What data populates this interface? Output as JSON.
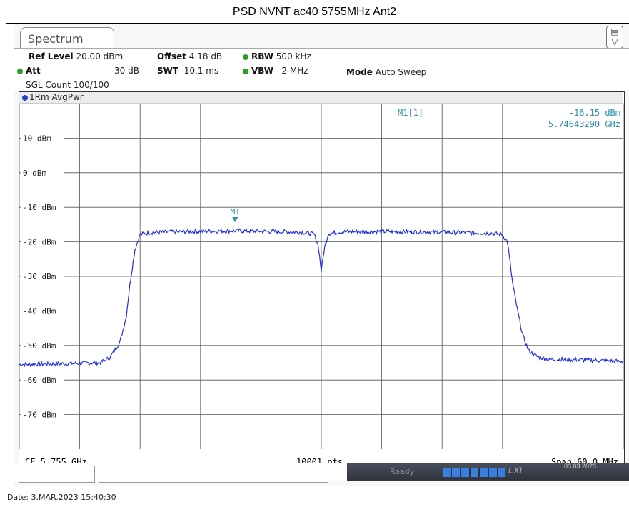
{
  "window": {
    "title": "PSD NVNT ac40 5755MHz Ant2"
  },
  "tab": {
    "label": "Spectrum",
    "icon": "display-settings-icon"
  },
  "settings": {
    "ref_level_label": "Ref Level",
    "ref_level_value": "20.00 dBm",
    "offset_label": "Offset",
    "offset_value": "4.18 dB",
    "rbw_label": "RBW",
    "rbw_value": "500 kHz",
    "att_label": "Att",
    "att_value": "30 dB",
    "swt_label": "SWT",
    "swt_value": "10.1 ms",
    "vbw_label": "VBW",
    "vbw_value": "2 MHz",
    "mode_label": "Mode",
    "mode_value": "Auto Sweep",
    "sgl_count": "SGL Count 100/100",
    "indicator_color": "#28a028"
  },
  "trace": {
    "label": "1Rm AvgPwr",
    "color": "#1f2fe0",
    "dot_color": "#2342c8"
  },
  "marker": {
    "name": "M1",
    "readout_label": "M1[1]",
    "level": "-16.15 dBm",
    "frequency": "5.74643290 GHz",
    "color": "#2a8fb0"
  },
  "footer": {
    "center_freq": "CF 5.755 GHz",
    "points": "10001 pts",
    "span": "Span 60.0 MHz"
  },
  "status": {
    "ready": "Ready",
    "date_badge": "03.03.2023"
  },
  "date_line": "Date: 3.MAR.2023  15:40:30",
  "chart_data": {
    "type": "line",
    "y_tick_labels": [
      "10 dBm",
      "0 dBm",
      "-10 dBm",
      "-20 dBm",
      "-30 dBm",
      "-40 dBm",
      "-50 dBm",
      "-60 dBm",
      "-70 dBm"
    ],
    "y_tick_values": [
      10,
      0,
      -10,
      -20,
      -30,
      -40,
      -50,
      -60,
      -70
    ],
    "ylim": [
      -80,
      20
    ],
    "xlim": [
      5725.0,
      5785.0
    ],
    "x_unit": "MHz",
    "grid": true,
    "series": [
      {
        "values_x": [
          5725.0,
          5729.0,
          5733.0,
          5734.0,
          5735.0,
          5735.6,
          5736.0,
          5736.5,
          5737.0,
          5738.0,
          5742.0,
          5746.4,
          5750.0,
          5753.0,
          5754.3,
          5754.7,
          5755.0,
          5755.3,
          5755.7,
          5757.0,
          5762.0,
          5767.0,
          5772.0,
          5773.0,
          5773.5,
          5774.0,
          5774.5,
          5775.0,
          5775.6,
          5776.5,
          5777.5,
          5781.0,
          5785.0
        ],
        "values_y": [
          -55.5,
          -55.3,
          -55.0,
          -53.5,
          -49.0,
          -42.0,
          -32.0,
          -22.0,
          -17.8,
          -17.3,
          -17.0,
          -16.8,
          -17.0,
          -17.2,
          -17.8,
          -21.0,
          -28.5,
          -22.0,
          -17.6,
          -17.1,
          -17.0,
          -17.2,
          -17.5,
          -18.0,
          -20.0,
          -32.0,
          -40.0,
          -47.0,
          -51.5,
          -53.3,
          -54.0,
          -54.2,
          -54.6
        ]
      }
    ],
    "marker_point": {
      "x": 5746.4329,
      "y": -16.15
    }
  }
}
